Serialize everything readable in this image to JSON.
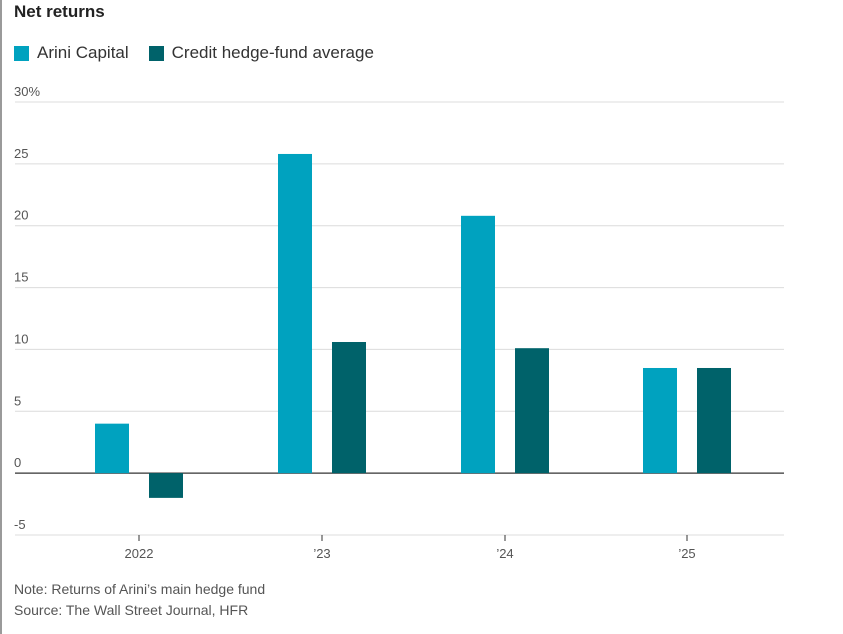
{
  "title": "Net returns",
  "legend": {
    "items": [
      {
        "label": "Arini Capital",
        "color": "#00a2bf"
      },
      {
        "label": "Credit hedge-fund average",
        "color": "#00626a"
      }
    ]
  },
  "notes": {
    "note": "Note: Returns of Arini’s main hedge fund",
    "source": "Source: The Wall Street Journal, HFR"
  },
  "chart_data": {
    "type": "bar",
    "title": "Net returns",
    "categories": [
      "2022",
      "’23",
      "’24",
      "’25"
    ],
    "series": [
      {
        "name": "Arini Capital",
        "values": [
          4,
          25.8,
          20.8,
          8.5
        ],
        "color": "#00a2bf"
      },
      {
        "name": "Credit hedge-fund average",
        "values": [
          -2,
          10.6,
          10.1,
          8.5
        ],
        "color": "#00626a"
      }
    ],
    "yticks": [
      {
        "value": 30,
        "label": "30%"
      },
      {
        "value": 25,
        "label": "25"
      },
      {
        "value": 20,
        "label": "20"
      },
      {
        "value": 15,
        "label": "15"
      },
      {
        "value": 10,
        "label": "10"
      },
      {
        "value": 5,
        "label": "5"
      },
      {
        "value": 0,
        "label": "0"
      },
      {
        "value": -5,
        "label": "-5"
      }
    ],
    "ylim": [
      -5,
      30
    ],
    "xlabel": "",
    "ylabel": "",
    "grid": true
  }
}
